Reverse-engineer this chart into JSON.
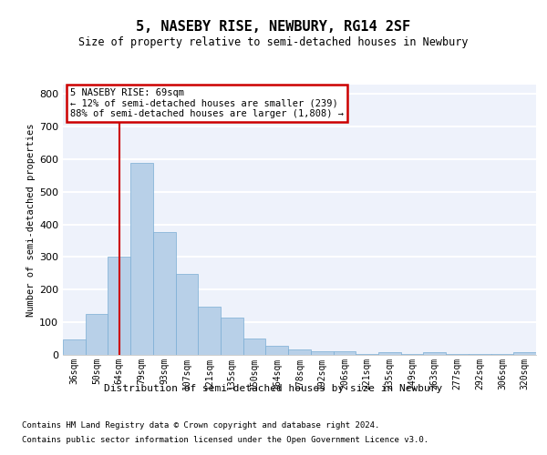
{
  "title": "5, NASEBY RISE, NEWBURY, RG14 2SF",
  "subtitle": "Size of property relative to semi-detached houses in Newbury",
  "xlabel": "Distribution of semi-detached houses by size in Newbury",
  "ylabel": "Number of semi-detached properties",
  "categories": [
    "36sqm",
    "50sqm",
    "64sqm",
    "79sqm",
    "93sqm",
    "107sqm",
    "121sqm",
    "135sqm",
    "150sqm",
    "164sqm",
    "178sqm",
    "192sqm",
    "206sqm",
    "221sqm",
    "235sqm",
    "249sqm",
    "263sqm",
    "277sqm",
    "292sqm",
    "306sqm",
    "320sqm"
  ],
  "bar_heights": [
    48,
    125,
    302,
    590,
    378,
    248,
    148,
    115,
    50,
    28,
    17,
    10,
    10,
    2,
    8,
    2,
    8,
    2,
    2,
    2,
    8
  ],
  "annotation_title": "5 NASEBY RISE: 69sqm",
  "annotation_line1": "← 12% of semi-detached houses are smaller (239)",
  "annotation_line2": "88% of semi-detached houses are larger (1,808) →",
  "bar_color": "#b8d0e8",
  "bar_edge_color": "#7aadd4",
  "line_color": "#cc0000",
  "box_edge_color": "#cc0000",
  "footer1": "Contains HM Land Registry data © Crown copyright and database right 2024.",
  "footer2": "Contains public sector information licensed under the Open Government Licence v3.0.",
  "ylim_max": 830,
  "yticks": [
    0,
    100,
    200,
    300,
    400,
    500,
    600,
    700,
    800
  ],
  "background_color": "#eef2fb",
  "grid_color": "#ffffff",
  "red_line_x": 2.0
}
